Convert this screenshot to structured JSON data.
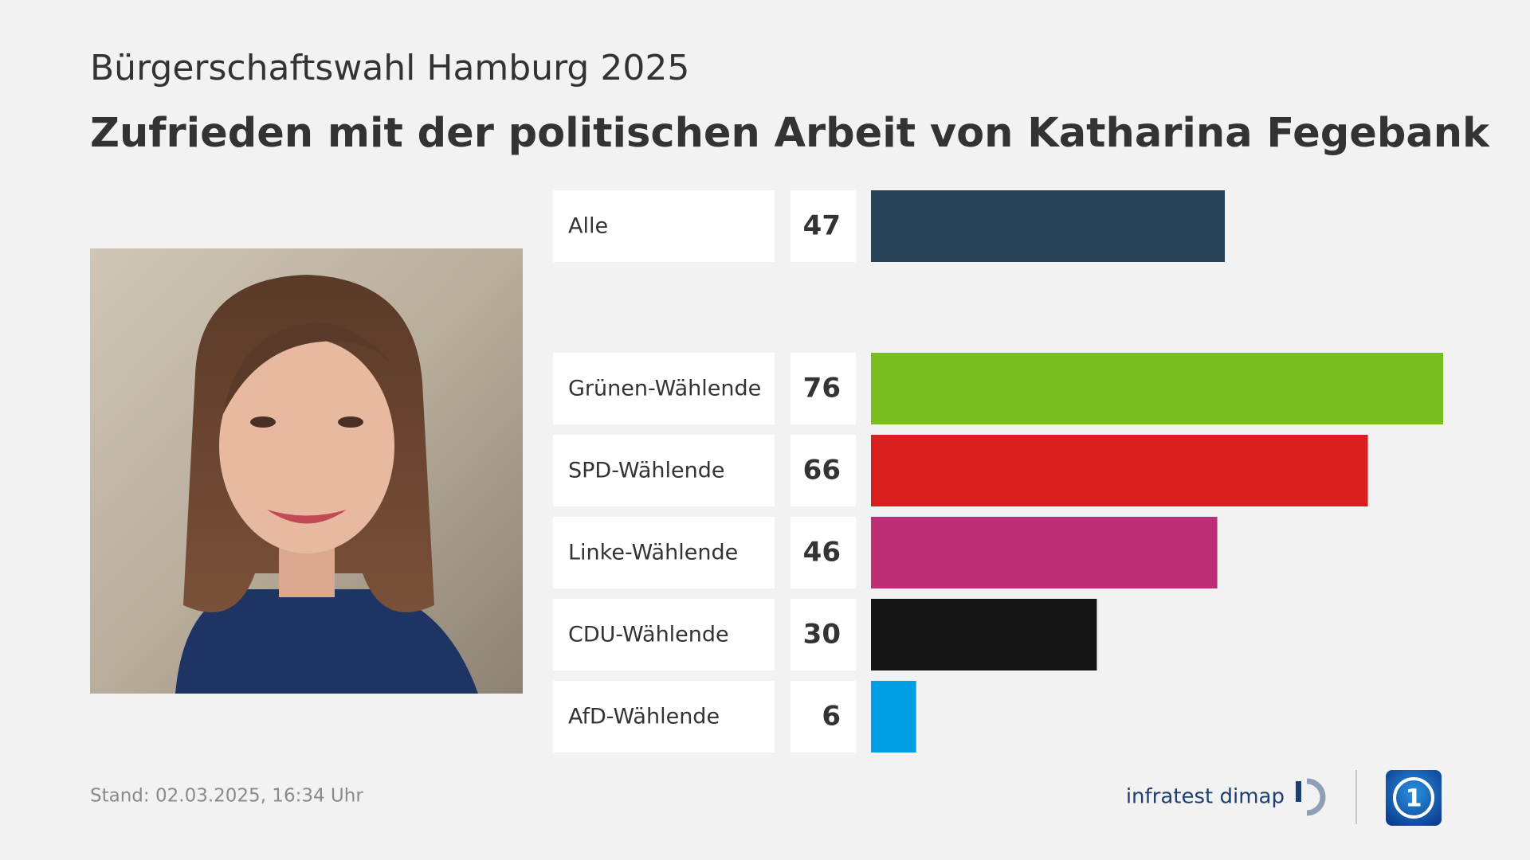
{
  "chart_data": {
    "type": "bar",
    "subtitle": "Bürgerschaftswahl Hamburg 2025",
    "title": "Zufrieden mit der politischen Arbeit von Katharina Fegebank",
    "categories": [
      "Alle",
      "Grünen-Wählende",
      "SPD-Wählende",
      "Linke-Wählende",
      "CDU-Wählende",
      "AfD-Wählende"
    ],
    "values": [
      47,
      76,
      66,
      46,
      30,
      6
    ],
    "colors": [
      "#284357",
      "#78be1e",
      "#d81e1e",
      "#bc2e75",
      "#141414",
      "#009fe3"
    ]
  },
  "footer": {
    "stand_label": "Stand:",
    "timestamp": "02.03.2025, 16:34 Uhr",
    "brand": "infratest dimap"
  }
}
